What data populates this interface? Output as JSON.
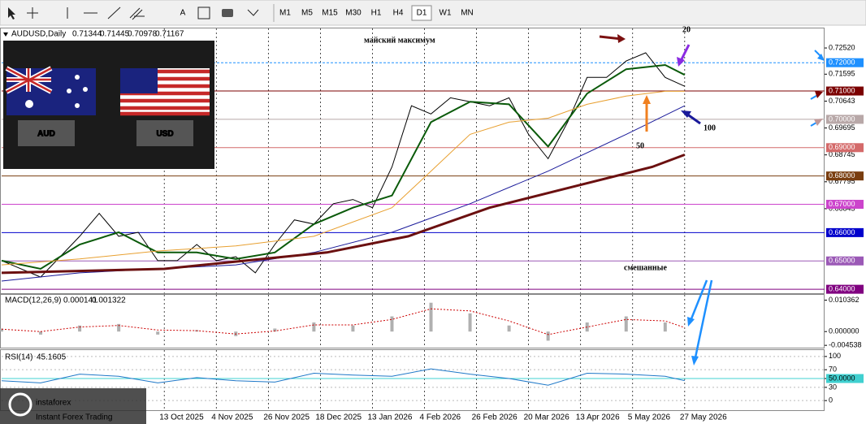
{
  "toolbar": {
    "text_tool": "A",
    "timeframes": [
      "M1",
      "M5",
      "M15",
      "M30",
      "H1",
      "H4",
      "D1",
      "W1",
      "MN"
    ]
  },
  "flags": [
    "AUD",
    "USD"
  ],
  "annotations": [
    {
      "text": "майский максимум",
      "color": "#7b1010"
    },
    {
      "text": "20",
      "color": "#8a2be2"
    },
    {
      "text": "50",
      "color": "#f08020"
    },
    {
      "text": "100",
      "color": "#1a1a9a"
    },
    {
      "text": "смешанные",
      "color": "#1e90d0"
    }
  ],
  "watermark": {
    "brand": "instaforex",
    "tagline": "Instant Forex Trading"
  },
  "chart_data": [
    {
      "type": "line",
      "title": "AUDUSD,Daily",
      "ohlc": [
        0.71344,
        0.71445,
        0.70978,
        0.71167
      ],
      "xlim": [
        0,
        253
      ],
      "xticks": [
        {
          "value": 50,
          "label": "13 Oct 2025"
        },
        {
          "value": 66,
          "label": "4 Nov 2025"
        },
        {
          "value": 82,
          "label": "26 Nov 2025"
        },
        {
          "value": 98,
          "label": "18 Dec 2025"
        },
        {
          "value": 114,
          "label": "13 Jan 2026"
        },
        {
          "value": 130,
          "label": "4 Feb 2026"
        },
        {
          "value": 146,
          "label": "26 Feb 2026"
        },
        {
          "value": 162,
          "label": "20 Mar 2026"
        },
        {
          "value": 178,
          "label": "13 Apr 2026"
        },
        {
          "value": 194,
          "label": "5 May 2026"
        },
        {
          "value": 210,
          "label": "27 May 2026"
        }
      ],
      "ylim": [
        0.6386,
        0.7321
      ],
      "yticks": [
        {
          "value": 0.7252,
          "label": "0.72520"
        },
        0.71595,
        0.70643,
        0.69695,
        0.68745,
        0.67795,
        0.66845
      ],
      "levels": [
        {
          "value": 0.72,
          "label": "0.72000",
          "color": "#1e90ff",
          "style": "dashed"
        },
        {
          "value": 0.71,
          "label": "0.71000",
          "color": "#7b0000",
          "style": "solid"
        },
        {
          "value": 0.7,
          "label": "0.70000",
          "color": "#b8a8a8",
          "style": "solid"
        },
        {
          "value": 0.69,
          "label": "0.69000",
          "color": "#d46a6a",
          "style": "solid"
        },
        {
          "value": 0.68,
          "label": "0.68000",
          "color": "#7a3e10",
          "style": "solid"
        },
        {
          "value": 0.67,
          "label": "0.67000",
          "color": "#cc44cc",
          "style": "solid"
        },
        {
          "value": 0.66,
          "label": "0.66000",
          "color": "#0000cc",
          "style": "solid"
        },
        {
          "value": 0.65,
          "label": "0.65000",
          "color": "#9b59b6",
          "style": "solid"
        },
        {
          "value": 0.64,
          "label": "0.64000",
          "color": "#800080",
          "style": "solid"
        }
      ],
      "series": [
        {
          "color": "#000000",
          "width": 1,
          "x": [
            0,
            12,
            18,
            24,
            30,
            36,
            42,
            48,
            54,
            60,
            66,
            72,
            78,
            84,
            90,
            96,
            102,
            108,
            114,
            120,
            126,
            132,
            138,
            144,
            150,
            156,
            162,
            168,
            174,
            180,
            186,
            192,
            198,
            204,
            210
          ],
          "values": [
            0.6501,
            0.6443,
            0.6515,
            0.6587,
            0.6668,
            0.6587,
            0.6601,
            0.6501,
            0.6501,
            0.6558,
            0.6501,
            0.6515,
            0.6458,
            0.6558,
            0.6645,
            0.663,
            0.6702,
            0.6717,
            0.6688,
            0.6832,
            0.7048,
            0.7019,
            0.7076,
            0.7062,
            0.7048,
            0.7076,
            0.6947,
            0.6861,
            0.699,
            0.7148,
            0.7148,
            0.7206,
            0.7235,
            0.7148,
            0.71167
          ]
        },
        {
          "color": "#0a5a0a",
          "width": 2,
          "x": [
            0,
            12,
            24,
            36,
            48,
            60,
            72,
            84,
            96,
            108,
            120,
            132,
            144,
            156,
            168,
            180,
            192,
            204,
            210
          ],
          "values": [
            0.6501,
            0.6472,
            0.6558,
            0.6601,
            0.653,
            0.653,
            0.6507,
            0.653,
            0.663,
            0.6688,
            0.6731,
            0.699,
            0.7062,
            0.7053,
            0.6904,
            0.7091,
            0.7177,
            0.7192,
            0.7157
          ]
        },
        {
          "color": "#e8a030",
          "width": 1,
          "x": [
            0,
            24,
            48,
            72,
            96,
            120,
            132,
            144,
            156,
            168,
            180,
            192,
            204,
            210
          ],
          "values": [
            0.6486,
            0.6507,
            0.6535,
            0.6553,
            0.6587,
            0.6688,
            0.6817,
            0.6947,
            0.699,
            0.7004,
            0.7053,
            0.7082,
            0.7099,
            0.7099
          ]
        },
        {
          "color": "#1a1a9a",
          "width": 1,
          "x": [
            0,
            24,
            48,
            72,
            96,
            120,
            144,
            168,
            192,
            210
          ],
          "values": [
            0.6429,
            0.6458,
            0.6472,
            0.6486,
            0.653,
            0.6601,
            0.6702,
            0.6817,
            0.6947,
            0.7048
          ]
        },
        {
          "color": "#6b1010",
          "width": 3,
          "x": [
            0,
            50,
            75,
            100,
            125,
            150,
            175,
            200,
            210
          ],
          "values": [
            0.6458,
            0.6472,
            0.6501,
            0.653,
            0.6587,
            0.6688,
            0.676,
            0.6832,
            0.6875
          ]
        }
      ]
    },
    {
      "type": "bar",
      "title": "MACD(12,26,9)",
      "readings": [
        0.000141,
        0.001322
      ],
      "xlim": [
        0,
        253
      ],
      "ylim": [
        -0.0053,
        0.0121
      ],
      "yticks": [
        0.010362,
        {
          "value": 0,
          "label": "0.000000"
        },
        -0.004538
      ],
      "series": [
        {
          "kind": "histogram",
          "color": "#b0b0b0",
          "x": [
            0,
            12,
            24,
            36,
            48,
            60,
            72,
            84,
            96,
            108,
            120,
            132,
            144,
            156,
            168,
            180,
            192,
            204,
            210
          ],
          "values": [
            0.001,
            -0.001,
            0.002,
            0.0025,
            -0.001,
            0.0005,
            -0.0015,
            0.001,
            0.003,
            0.002,
            0.005,
            0.0095,
            0.006,
            0.002,
            -0.003,
            0.003,
            0.005,
            0.003,
            0.000141
          ]
        },
        {
          "kind": "signal",
          "color": "#cc0000",
          "x": [
            0,
            12,
            24,
            36,
            48,
            60,
            72,
            84,
            96,
            108,
            120,
            132,
            144,
            156,
            168,
            180,
            192,
            204,
            210
          ],
          "values": [
            0.0008,
            0.0,
            0.0015,
            0.002,
            0.0005,
            0.0003,
            -0.0008,
            0.0002,
            0.0022,
            0.0022,
            0.004,
            0.0075,
            0.0068,
            0.0035,
            -0.001,
            0.0015,
            0.004,
            0.0035,
            0.001322
          ]
        }
      ]
    },
    {
      "type": "line",
      "title": "RSI(14)",
      "readings": [
        45.1605
      ],
      "xlim": [
        0,
        253
      ],
      "ylim": [
        -21.8,
        114.5
      ],
      "yticks": [
        100,
        70,
        {
          "value": 50,
          "label": "50.0000"
        },
        30,
        0
      ],
      "series": [
        {
          "color": "#1e78c8",
          "width": 1,
          "x": [
            0,
            12,
            24,
            36,
            48,
            60,
            72,
            84,
            96,
            108,
            120,
            132,
            144,
            156,
            168,
            180,
            192,
            204,
            210
          ],
          "values": [
            45,
            40,
            60,
            55,
            40,
            52,
            45,
            42,
            62,
            58,
            55,
            72,
            60,
            50,
            35,
            62,
            60,
            55,
            45.1605
          ]
        }
      ]
    }
  ]
}
